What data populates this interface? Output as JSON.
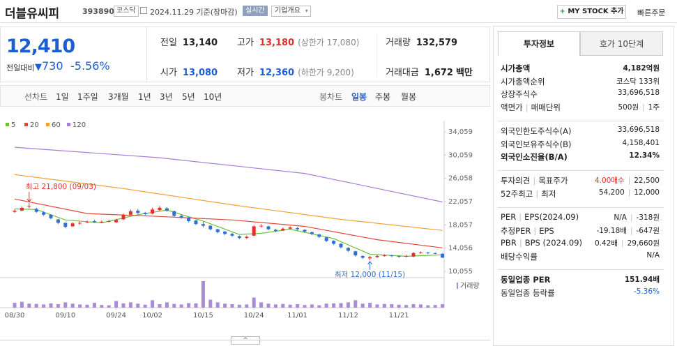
{
  "header": {
    "name": "더블유씨피",
    "code": "393890",
    "market": "코스닥",
    "date": "2024.11.29 기준(장마감)",
    "realtime": "실시간",
    "company": "기업개요",
    "mystock": "MY STOCK 추가",
    "order": "빠른주문"
  },
  "quote": {
    "price": "12,410",
    "change_label": "전일대비",
    "change": "730",
    "change_rate": "-5.56%",
    "items": [
      {
        "label": "전일",
        "value": "13,140"
      },
      {
        "label": "고가",
        "value": "13,180",
        "note": "(상한가 17,080)"
      },
      {
        "label": "거래량",
        "value": "132,579"
      },
      {
        "label": "시가",
        "value": "13,080"
      },
      {
        "label": "저가",
        "value": "12,360",
        "note": "(하한가 9,200)"
      },
      {
        "label": "거래대금",
        "value": "1,672",
        "unit": "백만"
      }
    ]
  },
  "period_tabs": [
    "선차트",
    "1일",
    "1주일",
    "3개월",
    "1년",
    "3년",
    "5년",
    "10년"
  ],
  "candle_tabs": [
    "봉차트",
    "일봉",
    "주봉",
    "월봉"
  ],
  "chart_data": {
    "type": "candlestick",
    "categories": [
      "08/30",
      null,
      null,
      null,
      null,
      null,
      null,
      "09/10",
      null,
      null,
      null,
      null,
      null,
      null,
      "09/24",
      null,
      null,
      null,
      null,
      "10/02",
      null,
      null,
      null,
      null,
      null,
      null,
      "10/15",
      null,
      null,
      null,
      null,
      null,
      null,
      "10/24",
      null,
      null,
      null,
      null,
      null,
      "11/01",
      null,
      null,
      null,
      null,
      null,
      null,
      "11/12",
      null,
      null,
      null,
      null,
      null,
      null,
      "11/21",
      null,
      null,
      null,
      null,
      null,
      null
    ],
    "open": [
      20300,
      20500,
      21200,
      20800,
      20200,
      19800,
      19000,
      18400,
      17800,
      18300,
      18500,
      18700,
      18600,
      18600,
      18500,
      19000,
      19800,
      20500,
      20100,
      20000,
      20600,
      20900,
      20400,
      19600,
      19300,
      18800,
      18200,
      17900,
      17300,
      16900,
      16500,
      16100,
      15800,
      16200,
      17900,
      17800,
      17200,
      17100,
      17400,
      17500,
      17200,
      16800,
      16400,
      15900,
      15300,
      14800,
      14100,
      13500,
      12700,
      12300,
      12500,
      12700,
      12800,
      12700,
      12600,
      12600,
      13200,
      13300,
      13200,
      13080
    ],
    "close": [
      20500,
      21000,
      21300,
      20300,
      19800,
      19200,
      18400,
      17700,
      18300,
      18400,
      18600,
      18500,
      18600,
      18700,
      18900,
      19800,
      20400,
      20100,
      19900,
      20700,
      21000,
      20500,
      19600,
      19300,
      18700,
      18200,
      17900,
      17300,
      16800,
      16500,
      16200,
      15800,
      16000,
      17800,
      17900,
      17300,
      17000,
      17400,
      17600,
      17300,
      16900,
      16500,
      16000,
      15300,
      14800,
      14200,
      13600,
      12800,
      12400,
      12500,
      12700,
      12800,
      12700,
      12600,
      12700,
      13200,
      13300,
      13200,
      13140,
      12410
    ],
    "high": [
      20700,
      21200,
      21800,
      21000,
      20400,
      19900,
      19100,
      18500,
      18500,
      18600,
      18800,
      18900,
      18800,
      18900,
      19100,
      20000,
      20700,
      20800,
      20300,
      21000,
      21300,
      21100,
      20500,
      19800,
      19400,
      18900,
      18600,
      18000,
      17400,
      17000,
      16700,
      16200,
      16200,
      18000,
      18200,
      17900,
      17400,
      17600,
      17800,
      17700,
      17300,
      16900,
      16500,
      16000,
      15400,
      14900,
      14200,
      13600,
      12800,
      12700,
      12900,
      13000,
      12900,
      12800,
      12900,
      13400,
      13500,
      13400,
      13300,
      13180
    ],
    "low": [
      20100,
      20400,
      20900,
      20100,
      19600,
      19000,
      18200,
      17500,
      17700,
      18100,
      18300,
      18400,
      18400,
      18500,
      18400,
      18900,
      19700,
      19900,
      19700,
      19900,
      20400,
      20300,
      19400,
      19100,
      18500,
      18000,
      17600,
      17100,
      16600,
      16300,
      16000,
      15600,
      15600,
      16100,
      17600,
      17100,
      16800,
      17000,
      17300,
      17100,
      16700,
      16300,
      15800,
      15100,
      14600,
      14000,
      13400,
      12600,
      12200,
      12000,
      12400,
      12600,
      12500,
      12400,
      12500,
      12500,
      13100,
      13000,
      13000,
      12360
    ],
    "volume": [
      180000,
      220000,
      150000,
      140000,
      120000,
      160000,
      130000,
      200000,
      150000,
      120000,
      110000,
      180000,
      100000,
      90000,
      250000,
      160000,
      200000,
      150000,
      110000,
      280000,
      130000,
      200000,
      140000,
      120000,
      170000,
      160000,
      1000000,
      300000,
      200000,
      150000,
      130000,
      110000,
      120000,
      380000,
      200000,
      150000,
      120000,
      140000,
      110000,
      130000,
      100000,
      120000,
      90000,
      150000,
      160000,
      170000,
      200000,
      280000,
      150000,
      180000,
      120000,
      140000,
      130000,
      110000,
      100000,
      130000,
      120000,
      90000,
      100000,
      132579
    ],
    "volume_label": "거래량",
    "up_color": "#e0312b",
    "down_color": "#2f6fd0",
    "volume_color": "#a98bd6",
    "series": [
      {
        "name": "5",
        "color": "#6cbf3a",
        "x": [
          0,
          3,
          7,
          12,
          17,
          21,
          26,
          31,
          34,
          38,
          44,
          49,
          54,
          59
        ],
        "values": [
          20800,
          20700,
          18900,
          18400,
          19800,
          20600,
          18700,
          16400,
          16600,
          17300,
          15700,
          13000,
          12650,
          12900
        ]
      },
      {
        "name": "20",
        "color": "#e0483a",
        "x": [
          0,
          10,
          20,
          30,
          40,
          50,
          59
        ],
        "values": [
          22500,
          20000,
          19500,
          18900,
          17800,
          15500,
          14100
        ]
      },
      {
        "name": "60",
        "color": "#f0a030",
        "x": [
          0,
          15,
          30,
          45,
          59
        ],
        "values": [
          26700,
          24300,
          21500,
          19000,
          17100
        ]
      },
      {
        "name": "120",
        "color": "#a77ed6",
        "x": [
          0,
          20,
          40,
          59
        ],
        "values": [
          31400,
          29600,
          26900,
          22000
        ]
      }
    ],
    "annotations": {
      "high": "최고 21,800 (09/03)",
      "low": "최저 12,000 (11/15)"
    },
    "ylim": [
      10055,
      34059
    ],
    "yticks": [
      {
        "value": 34059,
        "label": "34,059"
      },
      {
        "value": 30059,
        "label": "30,059"
      },
      {
        "value": 26058,
        "label": "26,058"
      },
      {
        "value": 22057,
        "label": "22,057"
      },
      {
        "value": 18057,
        "label": "18,057"
      },
      {
        "value": 14056,
        "label": "14,056"
      },
      {
        "value": 10055,
        "label": "10,055"
      }
    ],
    "grid": false
  },
  "invest_info": {
    "tabs": [
      "투자정보",
      "호가 10단계"
    ],
    "groups": [
      [
        {
          "label": "시가총액",
          "value": "4,182억원"
        },
        {
          "label": "시가총액순위",
          "value": "코스닥 133위"
        },
        {
          "label": "상장주식수",
          "value": "33,696,518"
        },
        {
          "label": [
            "액면가",
            "매매단위"
          ],
          "value": [
            "500원",
            "1주"
          ]
        }
      ],
      [
        {
          "label": "외국인한도주식수(A)",
          "value": "33,696,518"
        },
        {
          "label": "외국인보유주식수(B)",
          "value": "4,158,401"
        },
        {
          "label": "외국인소진율(B/A)",
          "value": "12.34%"
        }
      ],
      [
        {
          "label": [
            "투자의견",
            "목표주가"
          ],
          "value": [
            "4.00매수",
            "22,500"
          ]
        },
        {
          "label": [
            "52주최고",
            "최저"
          ],
          "value": [
            "54,200",
            "12,000"
          ]
        }
      ],
      [
        {
          "label": [
            "PER",
            "EPS(2024.09)"
          ],
          "value": [
            "N/A",
            "-318원"
          ]
        },
        {
          "label": [
            "추정PER",
            "EPS"
          ],
          "value": [
            "-19.18배",
            "-647원"
          ]
        },
        {
          "label": [
            "PBR",
            "BPS (2024.09)"
          ],
          "value": [
            "0.42배",
            "29,660원"
          ]
        },
        {
          "label": "배당수익률",
          "value": "N/A"
        }
      ],
      [
        {
          "label": "동일업종 PER",
          "value": "151.94배"
        },
        {
          "label": "동일업종 등락률",
          "value": "-5.36%"
        }
      ]
    ]
  }
}
